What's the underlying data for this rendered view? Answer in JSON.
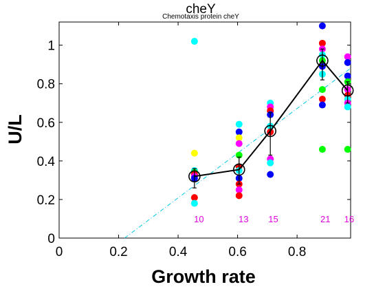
{
  "chart_data": {
    "type": "scatter",
    "title": "cheY",
    "subtitle": "Chemotaxis protein cheY",
    "xlabel": "Growth rate",
    "ylabel": "U/L",
    "xlim": [
      0,
      0.98
    ],
    "ylim": [
      0,
      1.12
    ],
    "xticks": [
      0,
      0.2,
      0.4,
      0.6,
      0.8
    ],
    "xtick_labels": [
      "0",
      "0.2",
      "0.4",
      "0.6",
      "0.8"
    ],
    "yticks": [
      0,
      0.2,
      0.4,
      0.6,
      0.8,
      1
    ],
    "ytick_labels": [
      "0",
      "0.2",
      "0.4",
      "0.6",
      "0.8",
      "1"
    ],
    "grid": false,
    "replicate_points": [
      {
        "x": 0.455,
        "y": 1.02,
        "color": "#00ffff"
      },
      {
        "x": 0.455,
        "y": 0.44,
        "color": "#ffff00"
      },
      {
        "x": 0.455,
        "y": 0.35,
        "color": "#00ffff"
      },
      {
        "x": 0.455,
        "y": 0.34,
        "color": "#00ff00"
      },
      {
        "x": 0.455,
        "y": 0.33,
        "color": "#ff0000"
      },
      {
        "x": 0.455,
        "y": 0.32,
        "color": "#ff00ff"
      },
      {
        "x": 0.455,
        "y": 0.31,
        "color": "#0000ff"
      },
      {
        "x": 0.455,
        "y": 0.21,
        "color": "#ff0000"
      },
      {
        "x": 0.455,
        "y": 0.18,
        "color": "#00ffff"
      },
      {
        "x": 0.605,
        "y": 0.59,
        "color": "#00ffff"
      },
      {
        "x": 0.605,
        "y": 0.55,
        "color": "#0000ff"
      },
      {
        "x": 0.605,
        "y": 0.52,
        "color": "#ffff00"
      },
      {
        "x": 0.605,
        "y": 0.49,
        "color": "#ff00ff"
      },
      {
        "x": 0.605,
        "y": 0.43,
        "color": "#00ff00"
      },
      {
        "x": 0.605,
        "y": 0.37,
        "color": "#ff0000"
      },
      {
        "x": 0.605,
        "y": 0.35,
        "color": "#00ffff"
      },
      {
        "x": 0.605,
        "y": 0.31,
        "color": "#0000ff"
      },
      {
        "x": 0.605,
        "y": 0.28,
        "color": "#ff0000"
      },
      {
        "x": 0.605,
        "y": 0.25,
        "color": "#ff00ff"
      },
      {
        "x": 0.605,
        "y": 0.22,
        "color": "#ff0000"
      },
      {
        "x": 0.71,
        "y": 0.7,
        "color": "#00ffff"
      },
      {
        "x": 0.71,
        "y": 0.68,
        "color": "#ff00ff"
      },
      {
        "x": 0.71,
        "y": 0.66,
        "color": "#ff0000"
      },
      {
        "x": 0.71,
        "y": 0.64,
        "color": "#0000ff"
      },
      {
        "x": 0.71,
        "y": 0.58,
        "color": "#00ffff"
      },
      {
        "x": 0.71,
        "y": 0.55,
        "color": "#ff0000"
      },
      {
        "x": 0.71,
        "y": 0.41,
        "color": "#ff00ff"
      },
      {
        "x": 0.71,
        "y": 0.39,
        "color": "#00ffff"
      },
      {
        "x": 0.71,
        "y": 0.33,
        "color": "#0000ff"
      },
      {
        "x": 0.885,
        "y": 1.1,
        "color": "#0000ff"
      },
      {
        "x": 0.885,
        "y": 1.01,
        "color": "#ff0000"
      },
      {
        "x": 0.885,
        "y": 0.98,
        "color": "#ff00ff"
      },
      {
        "x": 0.885,
        "y": 0.95,
        "color": "#00ffff"
      },
      {
        "x": 0.885,
        "y": 0.92,
        "color": "#00ff00"
      },
      {
        "x": 0.885,
        "y": 0.89,
        "color": "#0000ff"
      },
      {
        "x": 0.885,
        "y": 0.85,
        "color": "#00ffff"
      },
      {
        "x": 0.885,
        "y": 0.77,
        "color": "#00ff00"
      },
      {
        "x": 0.885,
        "y": 0.72,
        "color": "#ff0000"
      },
      {
        "x": 0.885,
        "y": 0.69,
        "color": "#0000ff"
      },
      {
        "x": 0.885,
        "y": 0.46,
        "color": "#00ff00"
      },
      {
        "x": 0.97,
        "y": 0.94,
        "color": "#ff00ff"
      },
      {
        "x": 0.97,
        "y": 0.91,
        "color": "#0000ff"
      },
      {
        "x": 0.97,
        "y": 0.84,
        "color": "#0000ff"
      },
      {
        "x": 0.97,
        "y": 0.81,
        "color": "#00ff00"
      },
      {
        "x": 0.97,
        "y": 0.77,
        "color": "#ff00ff"
      },
      {
        "x": 0.97,
        "y": 0.74,
        "color": "#ff0000"
      },
      {
        "x": 0.97,
        "y": 0.72,
        "color": "#00ffff"
      },
      {
        "x": 0.97,
        "y": 0.7,
        "color": "#ff00ff"
      },
      {
        "x": 0.97,
        "y": 0.68,
        "color": "#00ffff"
      },
      {
        "x": 0.97,
        "y": 0.46,
        "color": "#00ff00"
      }
    ],
    "mean_series": {
      "x": [
        0.455,
        0.605,
        0.71,
        0.885,
        0.97
      ],
      "y": [
        0.32,
        0.355,
        0.555,
        0.92,
        0.765
      ],
      "err_low": [
        0.26,
        0.28,
        0.43,
        0.82,
        0.7
      ],
      "err_high": [
        0.36,
        0.42,
        0.65,
        0.98,
        0.81
      ],
      "color": "#000000"
    },
    "fit_line": {
      "x": [
        0.22,
        0.98
      ],
      "y": [
        0.0,
        0.88
      ],
      "color": "#00c8e6",
      "style": "dash-dot"
    },
    "count_labels": [
      {
        "x": 0.47,
        "y": 0.1,
        "text": "10"
      },
      {
        "x": 0.62,
        "y": 0.1,
        "text": "13"
      },
      {
        "x": 0.72,
        "y": 0.1,
        "text": "15"
      },
      {
        "x": 0.895,
        "y": 0.1,
        "text": "21"
      },
      {
        "x": 0.975,
        "y": 0.1,
        "text": "16"
      }
    ]
  }
}
